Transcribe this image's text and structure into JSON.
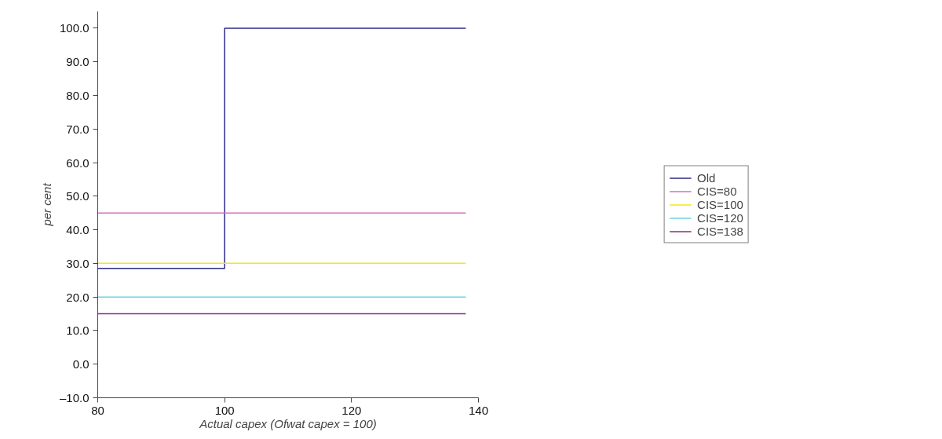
{
  "chart_data": {
    "type": "line",
    "xlabel": "Actual capex (Ofwat capex = 100)",
    "ylabel": "per cent",
    "xlim": [
      80,
      140
    ],
    "xticks": [
      80,
      100,
      120,
      140
    ],
    "ylim": [
      -10,
      105
    ],
    "yticks": [
      {
        "value": -10,
        "label": "–10.0"
      },
      {
        "value": 0,
        "label": "0.0"
      },
      {
        "value": 10,
        "label": "10.0"
      },
      {
        "value": 20,
        "label": "20.0"
      },
      {
        "value": 30,
        "label": "30.0"
      },
      {
        "value": 40,
        "label": "40.0"
      },
      {
        "value": 50,
        "label": "50.0"
      },
      {
        "value": 60,
        "label": "60.0"
      },
      {
        "value": 70,
        "label": "70.0"
      },
      {
        "value": 80,
        "label": "80.0"
      },
      {
        "value": 90,
        "label": "90.0"
      },
      {
        "value": 100,
        "label": "100.0"
      }
    ],
    "grid": false,
    "legend": "right",
    "marker": "none",
    "line_style": "solid",
    "series": [
      {
        "name": "Old",
        "type": "step",
        "color": "#2b2b8c",
        "x": [
          80,
          100,
          138
        ],
        "values": [
          28.5,
          100,
          100
        ]
      },
      {
        "name": "CIS=80",
        "color": "#d070c0",
        "x": [
          80,
          138
        ],
        "values": [
          45,
          45
        ]
      },
      {
        "name": "CIS=100",
        "color": "#f5e61e",
        "x": [
          80,
          138
        ],
        "values": [
          30,
          30
        ]
      },
      {
        "name": "CIS=120",
        "color": "#6fd0e6",
        "x": [
          80,
          138
        ],
        "values": [
          20,
          20
        ]
      },
      {
        "name": "CIS=138",
        "color": "#8b2a8b",
        "x": [
          80,
          138
        ],
        "values": [
          15,
          15
        ]
      }
    ]
  }
}
